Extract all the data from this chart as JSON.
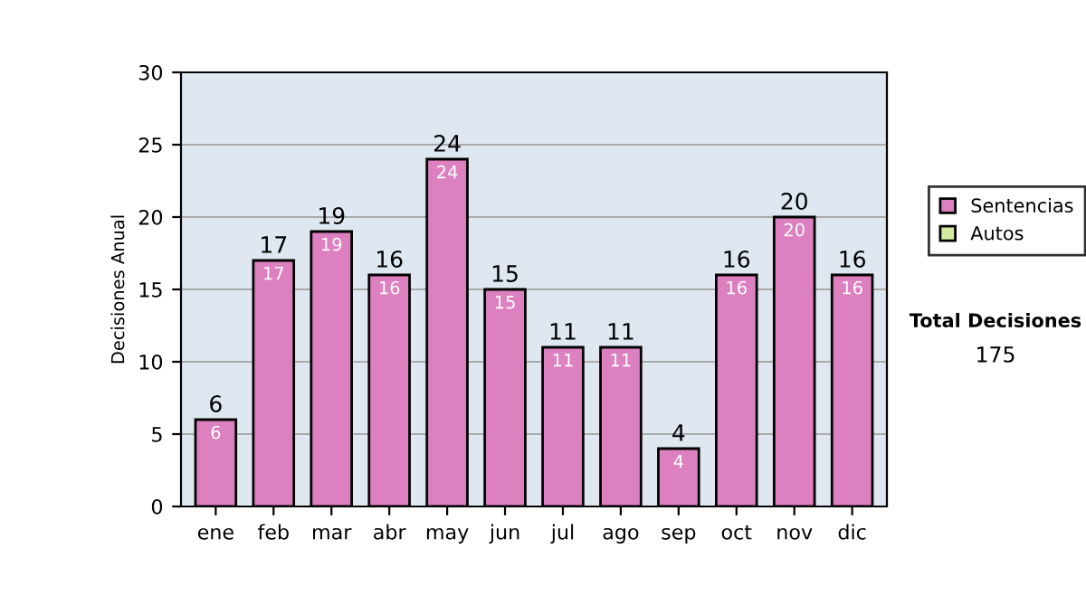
{
  "chart_data": {
    "type": "bar",
    "ylabel": "Decisiones Anual",
    "stacked": true,
    "categories": [
      "ene",
      "feb",
      "mar",
      "abr",
      "may",
      "jun",
      "jul",
      "ago",
      "sep",
      "oct",
      "nov",
      "dic"
    ],
    "series": [
      {
        "name": "Sentencias",
        "color": "#dd80c0",
        "values": [
          6,
          17,
          19,
          16,
          24,
          15,
          11,
          11,
          4,
          16,
          20,
          16
        ],
        "value_labels": [
          "6",
          "17",
          "19",
          "16",
          "24",
          "15",
          "11",
          "11",
          "4",
          "16",
          "20",
          "16"
        ]
      },
      {
        "name": "Autos",
        "color": "#d4eca0",
        "values": [
          0,
          0,
          0,
          0,
          0,
          0,
          0,
          0,
          0,
          0,
          0,
          0
        ]
      }
    ],
    "totals": [
      "6",
      "17",
      "19",
      "16",
      "24",
      "15",
      "11",
      "11",
      "4",
      "16",
      "20",
      "16"
    ],
    "ylim": [
      0,
      30
    ],
    "yticks": [
      0,
      5,
      10,
      15,
      20,
      25,
      30
    ],
    "grid": "y",
    "legend": "right",
    "annotations": [
      "Total Decisiones",
      "175"
    ]
  }
}
